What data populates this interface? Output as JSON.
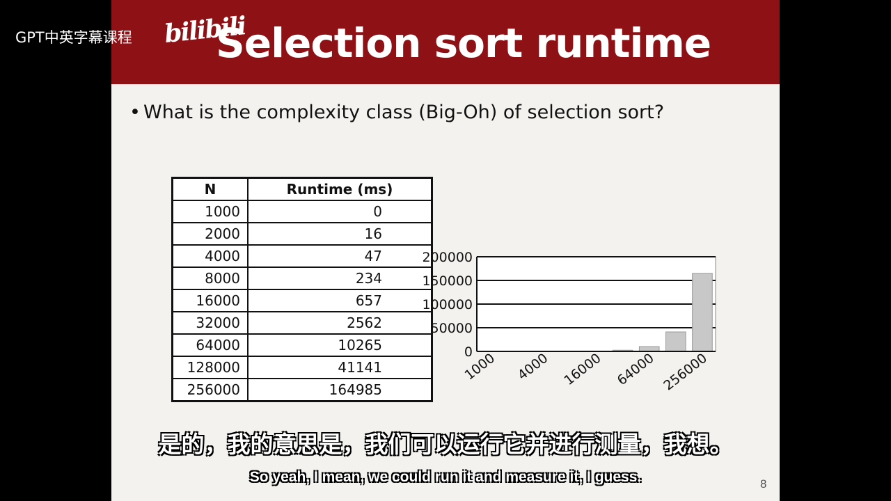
{
  "watermark": {
    "channel": "GPT中英字幕课程",
    "logo": "bilibili"
  },
  "slide": {
    "title": "Selection sort runtime",
    "bullet": "What is the complexity class (Big-Oh) of selection sort?",
    "page_number": "8"
  },
  "table": {
    "headers": [
      "N",
      "Runtime (ms)"
    ],
    "rows": [
      [
        "1000",
        "0"
      ],
      [
        "2000",
        "16"
      ],
      [
        "4000",
        "47"
      ],
      [
        "8000",
        "234"
      ],
      [
        "16000",
        "657"
      ],
      [
        "32000",
        "2562"
      ],
      [
        "64000",
        "10265"
      ],
      [
        "128000",
        "41141"
      ],
      [
        "256000",
        "164985"
      ]
    ]
  },
  "chart_data": {
    "type": "bar",
    "categories": [
      "1000",
      "2000",
      "4000",
      "8000",
      "16000",
      "32000",
      "64000",
      "128000",
      "256000"
    ],
    "x_tick_labels": [
      "1000",
      "4000",
      "16000",
      "64000",
      "256000"
    ],
    "values": [
      0,
      16,
      47,
      234,
      657,
      2562,
      10265,
      41141,
      164985
    ],
    "y_ticks": [
      "0",
      "50000",
      "100000",
      "150000",
      "200000"
    ],
    "ylim": [
      0,
      200000
    ],
    "grid": true,
    "bar_color": "#c8c8c8"
  },
  "subtitles": {
    "chinese": "是的，我的意思是，我们可以运行它并进行测量，我想。",
    "english": "So yeah, I mean, we could run it and measure it, I guess."
  }
}
